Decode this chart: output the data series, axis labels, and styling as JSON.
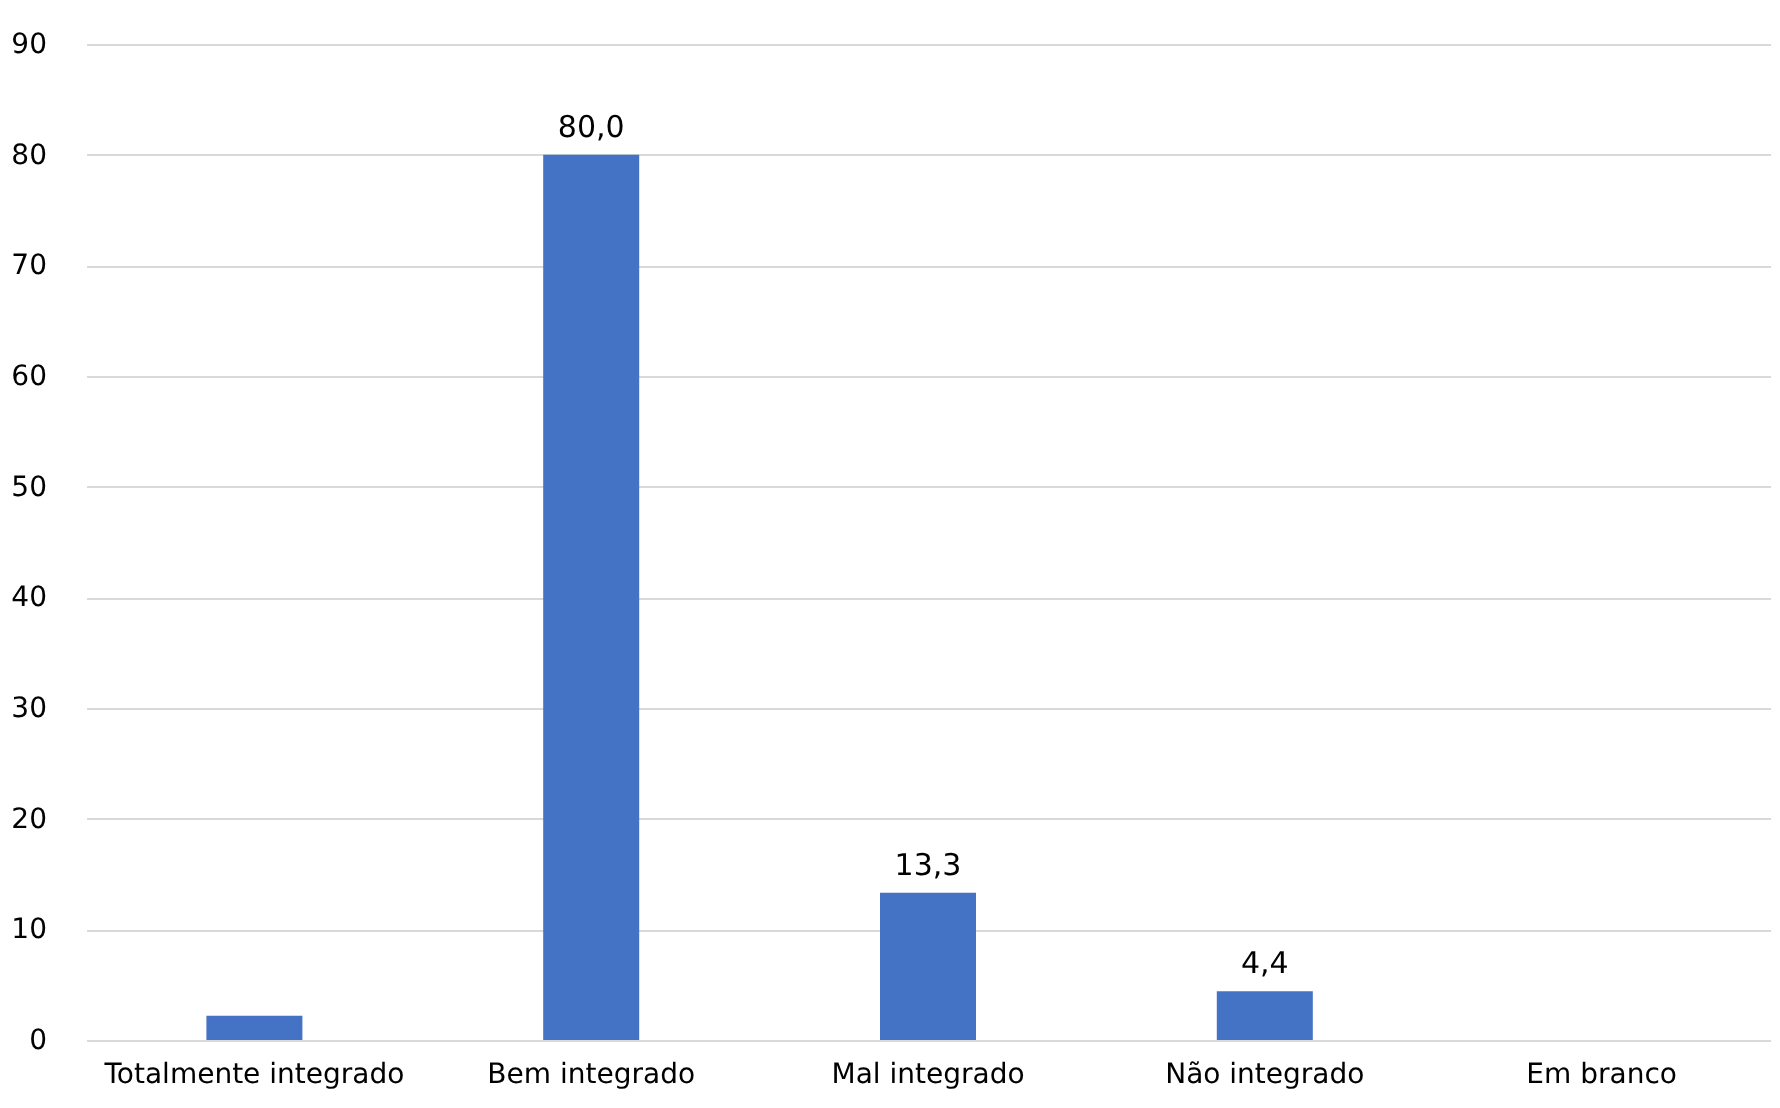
{
  "chart_data": {
    "type": "bar",
    "categories": [
      "Totalmente integrado",
      "Bem integrado",
      "Mal integrado",
      "Não integrado",
      "Em branco"
    ],
    "values": [
      2.2,
      80.0,
      13.3,
      4.4,
      0
    ],
    "value_labels": [
      null,
      "80,0",
      "13,3",
      "4,4",
      null
    ],
    "color": "#4472c4",
    "ylim": [
      0,
      90
    ],
    "yticks": [
      0,
      10,
      20,
      30,
      40,
      50,
      60,
      70,
      80,
      90
    ],
    "grid": "y"
  }
}
